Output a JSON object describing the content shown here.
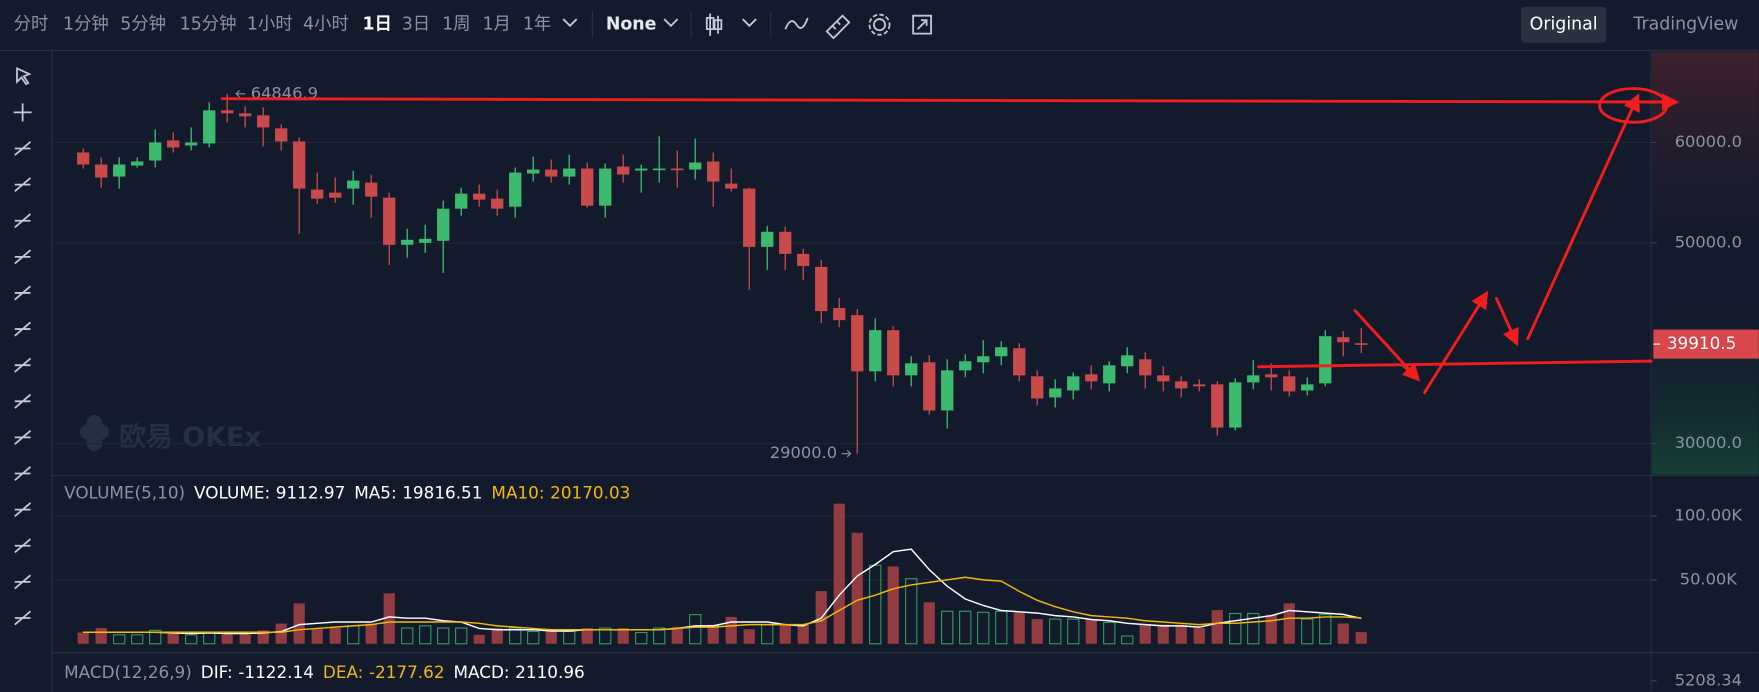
{
  "toolbar": {
    "intervals": [
      "分时",
      "1分钟",
      "5分钟",
      "15分钟",
      "1小时",
      "4小时",
      "1日",
      "3日",
      "1周",
      "1月",
      "1年"
    ],
    "indicator": "None",
    "views": [
      "Original",
      "TradingView"
    ]
  },
  "watermark": "欧易 OKEx",
  "chart_data": [
    {
      "type": "candlestick",
      "up_color": "#3cba6f",
      "down_color": "#c94a4a",
      "open": [
        59000,
        57800,
        56600,
        57700,
        58200,
        60200,
        59700,
        59900,
        63200,
        62900,
        62700,
        61400,
        60100,
        55300,
        55000,
        55400,
        56000,
        54500,
        49800,
        50000,
        50200,
        53400,
        54900,
        54400,
        53600,
        56900,
        57300,
        56600,
        57400,
        53700,
        57600,
        57200,
        57300,
        57400,
        57300,
        58100,
        55900,
        55400,
        49600,
        51100,
        48900,
        47600,
        43500,
        42800,
        37200,
        41300,
        36800,
        38100,
        33300,
        37300,
        38100,
        38700,
        39500,
        36700,
        34600,
        35300,
        36900,
        36000,
        37700,
        38400,
        36800,
        36200,
        35900,
        35900,
        31600,
        36100,
        36900,
        36700,
        35300,
        36000,
        40600,
        40000
      ],
      "high": [
        59400,
        58500,
        58500,
        58500,
        61300,
        61000,
        61500,
        64000,
        64846.9,
        63600,
        63500,
        61800,
        60500,
        57000,
        56500,
        57200,
        56800,
        55000,
        51400,
        51800,
        54200,
        55500,
        55800,
        55300,
        57500,
        58600,
        58300,
        58800,
        58000,
        57900,
        58800,
        57800,
        60600,
        59200,
        60400,
        59000,
        57400,
        55500,
        51700,
        51600,
        49400,
        48300,
        44500,
        43400,
        42500,
        41700,
        38700,
        38800,
        38400,
        38900,
        40300,
        40200,
        40000,
        37300,
        36400,
        37100,
        37800,
        38200,
        39600,
        39100,
        37700,
        36700,
        36400,
        36200,
        36500,
        38300,
        38000,
        37300,
        36600,
        41300,
        41200,
        41500
      ],
      "low": [
        57400,
        55500,
        55400,
        57500,
        57500,
        59000,
        59200,
        59500,
        62000,
        61500,
        59600,
        59200,
        50900,
        53900,
        54000,
        53800,
        52500,
        47800,
        48500,
        49000,
        47000,
        52700,
        53600,
        52700,
        52500,
        56100,
        56000,
        55800,
        53500,
        52500,
        56000,
        55000,
        56000,
        55500,
        56300,
        53600,
        55100,
        45300,
        47300,
        47300,
        46300,
        42000,
        41600,
        29000,
        36200,
        35700,
        35700,
        32900,
        31500,
        36600,
        37000,
        37800,
        36200,
        33800,
        33600,
        34400,
        35400,
        35200,
        37000,
        35500,
        35200,
        34600,
        35200,
        30800,
        31300,
        35400,
        35300,
        34700,
        34800,
        35700,
        38700,
        39000
      ],
      "close": [
        57800,
        56500,
        57800,
        58100,
        60000,
        59500,
        60000,
        63200,
        62900,
        62600,
        61500,
        60100,
        55400,
        54400,
        54500,
        56200,
        54600,
        49800,
        50300,
        50400,
        53400,
        54900,
        54300,
        53400,
        57000,
        57300,
        56600,
        57400,
        53700,
        57400,
        56800,
        57400,
        57400,
        57300,
        58000,
        56100,
        55400,
        49600,
        51100,
        48900,
        47700,
        43200,
        42300,
        37200,
        41300,
        36800,
        38000,
        33300,
        37300,
        38200,
        38700,
        39600,
        36800,
        34500,
        35500,
        36700,
        36200,
        37800,
        38800,
        36800,
        36200,
        35500,
        35700,
        31600,
        36100,
        36800,
        36600,
        35200,
        35900,
        40700,
        40100,
        39910.5
      ],
      "high_label": "64846.9",
      "low_label": "29000.0",
      "last_price_label": "39910.5",
      "ylim": [
        26930,
        69050
      ],
      "yticks": [
        {
          "value": 30000,
          "label": "30000.0"
        },
        {
          "value": 50000,
          "label": "50000.0"
        },
        {
          "value": 60000,
          "label": "60000.0"
        }
      ],
      "grid": true
    },
    {
      "type": "bar",
      "title": "VOLUME(5,10)",
      "series": [
        {
          "name": "VOLUME:",
          "color": "#ffffff",
          "values": [
            8800,
            12300,
            7000,
            7000,
            10500,
            7900,
            7000,
            8800,
            7900,
            8800,
            10500,
            15800,
            31600,
            11400,
            12300,
            14000,
            15800,
            39500,
            12300,
            14000,
            12300,
            12300,
            7000,
            12300,
            12300,
            9600,
            9600,
            9600,
            12300,
            12300,
            12300,
            8800,
            12300,
            13200,
            22800,
            14900,
            21000,
            11400,
            14900,
            14900,
            14900,
            41200,
            109600,
            86800,
            61400,
            60500,
            50900,
            32500,
            25400,
            25400,
            24600,
            25400,
            24600,
            19300,
            19300,
            19300,
            19300,
            16700,
            6100,
            14900,
            14900,
            14900,
            12300,
            26300,
            23700,
            23700,
            22800,
            31600,
            19300,
            22800,
            15800,
            9112.97
          ]
        },
        {
          "name": "MA5:",
          "color": "#ffffff",
          "values": [
            9000,
            9000,
            9000,
            9000,
            9000,
            8500,
            8000,
            8500,
            8000,
            8000,
            8500,
            9500,
            15000,
            16000,
            17000,
            17000,
            17000,
            21000,
            20000,
            20000,
            18000,
            17000,
            12000,
            11000,
            11000,
            11000,
            10000,
            10000,
            11000,
            11000,
            11000,
            11000,
            11000,
            12000,
            14000,
            14000,
            17000,
            17000,
            17000,
            15000,
            14000,
            20000,
            38000,
            53000,
            62000,
            72000,
            74000,
            58000,
            45000,
            35000,
            30000,
            26000,
            25000,
            24000,
            22000,
            21000,
            19000,
            18000,
            16000,
            15000,
            14000,
            14000,
            13000,
            16000,
            18000,
            20000,
            22000,
            26000,
            25000,
            24000,
            23000,
            19816.51
          ]
        },
        {
          "name": "MA10:",
          "color": "#f0b90b",
          "values": [
            9000,
            9000,
            9000,
            9000,
            9000,
            9000,
            9000,
            9000,
            9000,
            9000,
            9000,
            9000,
            11000,
            12000,
            13000,
            14000,
            15000,
            17000,
            17000,
            17000,
            17000,
            17000,
            16000,
            14000,
            13000,
            12000,
            11000,
            11000,
            11000,
            11000,
            11000,
            11000,
            11000,
            12000,
            13000,
            13000,
            14000,
            15000,
            15000,
            15000,
            15000,
            18000,
            26000,
            34000,
            38000,
            43000,
            46000,
            48000,
            50000,
            52000,
            50000,
            49000,
            41000,
            34000,
            29000,
            25000,
            22000,
            21000,
            20000,
            18000,
            17000,
            16000,
            15000,
            16000,
            16000,
            17000,
            18000,
            20000,
            20000,
            21000,
            21000,
            20170.03
          ]
        }
      ],
      "ylim": [
        0,
        130700
      ],
      "yticks": [
        {
          "value": 50000,
          "label": "50.00K"
        },
        {
          "value": 100000,
          "label": "100.00K"
        }
      ],
      "grid": true
    },
    {
      "type": "macd",
      "title": "MACD(12,26,9)",
      "legend": [
        {
          "name": "DIF:",
          "value": -1122.14,
          "color": "#ffffff"
        },
        {
          "name": "DEA:",
          "value": -2177.62,
          "color": "#f0b90b"
        },
        {
          "name": "MACD:",
          "value": 2110.96,
          "color": "#ffffff"
        }
      ],
      "yticks": [
        5208.34
      ]
    }
  ]
}
